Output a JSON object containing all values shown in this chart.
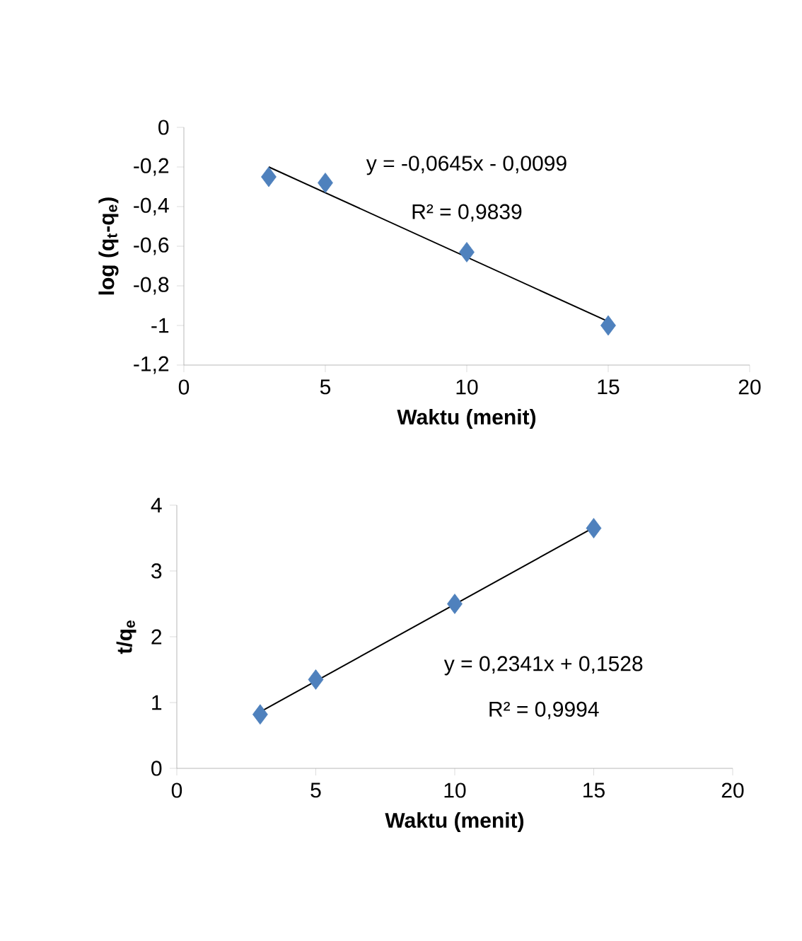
{
  "chart_data": [
    {
      "type": "scatter",
      "xlabel": "Waktu (menit)",
      "ylabel": "log (q$_{t}$-q$_{e}$)",
      "xlim": [
        0,
        20
      ],
      "xticks": [
        0,
        5,
        10,
        15,
        20
      ],
      "ylim": [
        -1.2,
        0
      ],
      "yticks": [
        {
          "value": -1.2,
          "label": "-1,2"
        },
        {
          "value": -1,
          "label": "-1"
        },
        {
          "value": -0.8,
          "label": "-0,8"
        },
        {
          "value": -0.6,
          "label": "-0,6"
        },
        {
          "value": -0.4,
          "label": "-0,4"
        },
        {
          "value": -0.2,
          "label": "-0,2"
        },
        {
          "value": 0,
          "label": "0"
        }
      ],
      "grid": false,
      "series": [
        {
          "color": "#4f81bd",
          "marker": "diamond",
          "x": [
            3,
            5,
            10,
            15
          ],
          "values": [
            -0.25,
            -0.28,
            -0.63,
            -1.0
          ]
        },
        {
          "type": "line",
          "color": "#000000",
          "x": [
            3,
            15
          ],
          "values": [
            -0.2,
            -0.98
          ]
        }
      ],
      "annotations": [
        "y = -0,0645x - 0,0099",
        "R² = 0,9839"
      ]
    },
    {
      "type": "scatter",
      "xlabel": "Waktu (menit)",
      "ylabel": "t/q$_{e}$",
      "xlim": [
        0,
        20
      ],
      "xticks": [
        0,
        5,
        10,
        15,
        20
      ],
      "ylim": [
        0,
        4
      ],
      "yticks": [
        0,
        1,
        2,
        3,
        4
      ],
      "grid": false,
      "series": [
        {
          "color": "#4f81bd",
          "marker": "diamond",
          "x": [
            3,
            5,
            10,
            15
          ],
          "values": [
            0.82,
            1.35,
            2.5,
            3.65
          ]
        },
        {
          "type": "line",
          "color": "#000000",
          "x": [
            3,
            15
          ],
          "values": [
            0.86,
            3.66
          ]
        }
      ],
      "annotations": [
        "y = 0,2341x + 0,1528",
        "R² = 0,9994"
      ]
    }
  ]
}
